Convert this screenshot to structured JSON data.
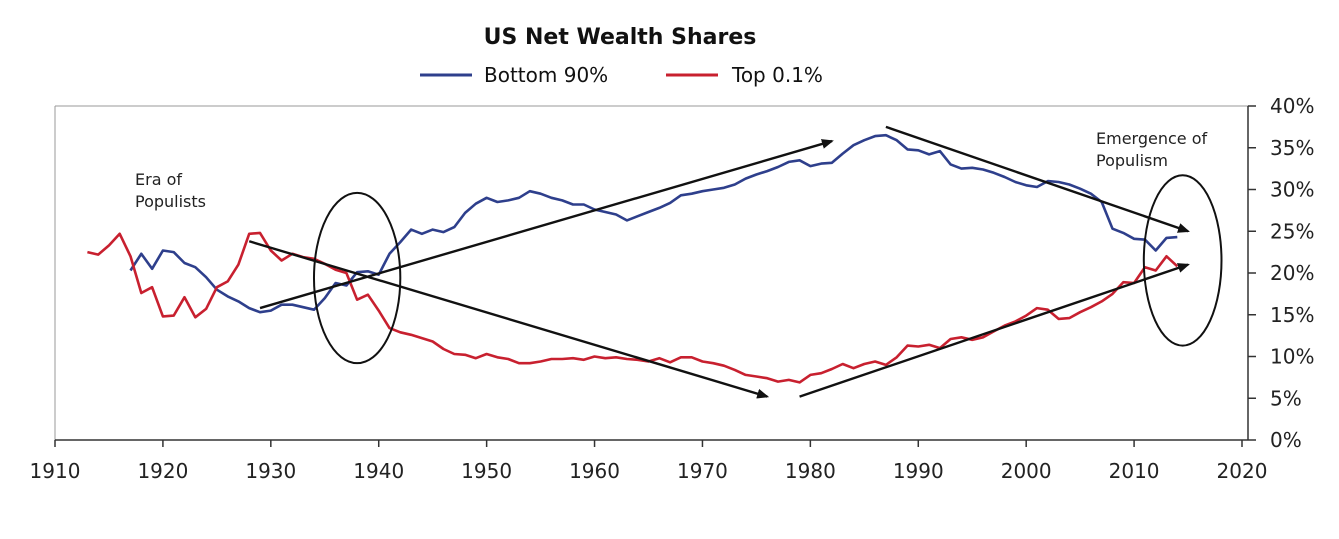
{
  "chart_data": {
    "type": "line",
    "title": "US Net Wealth Shares",
    "xlabel": "",
    "ylabel": "",
    "xlim": [
      1910,
      2020
    ],
    "ylim": [
      0,
      40
    ],
    "x_ticks": [
      "1910",
      "1920",
      "1930",
      "1940",
      "1950",
      "1960",
      "1970",
      "1980",
      "1990",
      "2000",
      "2010",
      "2020"
    ],
    "y_ticks": [
      "0%",
      "5%",
      "10%",
      "15%",
      "20%",
      "25%",
      "30%",
      "35%",
      "40%"
    ],
    "y_axis_side": "right",
    "grid": false,
    "legend_position": "top-center",
    "series": [
      {
        "name": "Bottom 90%",
        "color": "#2e3f8c",
        "points": [
          [
            1917,
            20.3
          ],
          [
            1918,
            22.3
          ],
          [
            1919,
            20.5
          ],
          [
            1920,
            22.7
          ],
          [
            1921,
            22.5
          ],
          [
            1922,
            21.2
          ],
          [
            1923,
            20.7
          ],
          [
            1924,
            19.5
          ],
          [
            1925,
            18.0
          ],
          [
            1926,
            17.2
          ],
          [
            1927,
            16.6
          ],
          [
            1928,
            15.8
          ],
          [
            1929,
            15.3
          ],
          [
            1930,
            15.5
          ],
          [
            1931,
            16.2
          ],
          [
            1932,
            16.2
          ],
          [
            1933,
            15.9
          ],
          [
            1934,
            15.6
          ],
          [
            1935,
            17.0
          ],
          [
            1936,
            18.8
          ],
          [
            1937,
            18.5
          ],
          [
            1938,
            20.1
          ],
          [
            1939,
            20.2
          ],
          [
            1940,
            19.8
          ],
          [
            1941,
            22.3
          ],
          [
            1942,
            23.7
          ],
          [
            1943,
            25.2
          ],
          [
            1944,
            24.7
          ],
          [
            1945,
            25.2
          ],
          [
            1946,
            24.9
          ],
          [
            1947,
            25.5
          ],
          [
            1948,
            27.2
          ],
          [
            1949,
            28.3
          ],
          [
            1950,
            29.0
          ],
          [
            1951,
            28.5
          ],
          [
            1952,
            28.7
          ],
          [
            1953,
            29.0
          ],
          [
            1954,
            29.8
          ],
          [
            1955,
            29.5
          ],
          [
            1956,
            29.0
          ],
          [
            1957,
            28.7
          ],
          [
            1958,
            28.2
          ],
          [
            1959,
            28.2
          ],
          [
            1960,
            27.6
          ],
          [
            1961,
            27.3
          ],
          [
            1962,
            27.0
          ],
          [
            1963,
            26.3
          ],
          [
            1964,
            26.8
          ],
          [
            1965,
            27.3
          ],
          [
            1966,
            27.8
          ],
          [
            1967,
            28.4
          ],
          [
            1968,
            29.3
          ],
          [
            1969,
            29.5
          ],
          [
            1970,
            29.8
          ],
          [
            1971,
            30.0
          ],
          [
            1972,
            30.2
          ],
          [
            1973,
            30.6
          ],
          [
            1974,
            31.3
          ],
          [
            1975,
            31.8
          ],
          [
            1976,
            32.2
          ],
          [
            1977,
            32.7
          ],
          [
            1978,
            33.3
          ],
          [
            1979,
            33.5
          ],
          [
            1980,
            32.8
          ],
          [
            1981,
            33.1
          ],
          [
            1982,
            33.2
          ],
          [
            1983,
            34.3
          ],
          [
            1984,
            35.3
          ],
          [
            1985,
            35.9
          ],
          [
            1986,
            36.4
          ],
          [
            1987,
            36.5
          ],
          [
            1988,
            35.9
          ],
          [
            1989,
            34.8
          ],
          [
            1990,
            34.7
          ],
          [
            1991,
            34.2
          ],
          [
            1992,
            34.6
          ],
          [
            1993,
            33.0
          ],
          [
            1994,
            32.5
          ],
          [
            1995,
            32.6
          ],
          [
            1996,
            32.4
          ],
          [
            1997,
            32.0
          ],
          [
            1998,
            31.5
          ],
          [
            1999,
            30.9
          ],
          [
            2000,
            30.5
          ],
          [
            2001,
            30.3
          ],
          [
            2002,
            31.0
          ],
          [
            2003,
            30.9
          ],
          [
            2004,
            30.6
          ],
          [
            2005,
            30.1
          ],
          [
            2006,
            29.5
          ],
          [
            2007,
            28.5
          ],
          [
            2008,
            25.3
          ],
          [
            2009,
            24.8
          ],
          [
            2010,
            24.1
          ],
          [
            2011,
            24.0
          ],
          [
            2012,
            22.7
          ],
          [
            2013,
            24.2
          ],
          [
            2014,
            24.3
          ]
        ]
      },
      {
        "name": "Top 0.1%",
        "color": "#c8202f",
        "points": [
          [
            1913,
            22.5
          ],
          [
            1914,
            22.2
          ],
          [
            1915,
            23.3
          ],
          [
            1916,
            24.7
          ],
          [
            1917,
            22.0
          ],
          [
            1918,
            17.6
          ],
          [
            1919,
            18.3
          ],
          [
            1920,
            14.8
          ],
          [
            1921,
            14.9
          ],
          [
            1922,
            17.1
          ],
          [
            1923,
            14.7
          ],
          [
            1924,
            15.7
          ],
          [
            1925,
            18.3
          ],
          [
            1926,
            19.0
          ],
          [
            1927,
            21.0
          ],
          [
            1928,
            24.7
          ],
          [
            1929,
            24.8
          ],
          [
            1930,
            22.7
          ],
          [
            1931,
            21.5
          ],
          [
            1932,
            22.3
          ],
          [
            1933,
            21.9
          ],
          [
            1934,
            21.7
          ],
          [
            1935,
            21.1
          ],
          [
            1936,
            20.4
          ],
          [
            1937,
            20.0
          ],
          [
            1938,
            16.8
          ],
          [
            1939,
            17.4
          ],
          [
            1940,
            15.5
          ],
          [
            1941,
            13.4
          ],
          [
            1942,
            12.9
          ],
          [
            1943,
            12.6
          ],
          [
            1944,
            12.2
          ],
          [
            1945,
            11.8
          ],
          [
            1946,
            10.9
          ],
          [
            1947,
            10.3
          ],
          [
            1948,
            10.2
          ],
          [
            1949,
            9.8
          ],
          [
            1950,
            10.3
          ],
          [
            1951,
            9.9
          ],
          [
            1952,
            9.7
          ],
          [
            1953,
            9.2
          ],
          [
            1954,
            9.2
          ],
          [
            1955,
            9.4
          ],
          [
            1956,
            9.7
          ],
          [
            1957,
            9.7
          ],
          [
            1958,
            9.8
          ],
          [
            1959,
            9.6
          ],
          [
            1960,
            10.0
          ],
          [
            1961,
            9.8
          ],
          [
            1962,
            9.9
          ],
          [
            1963,
            9.7
          ],
          [
            1964,
            9.6
          ],
          [
            1965,
            9.4
          ],
          [
            1966,
            9.8
          ],
          [
            1967,
            9.3
          ],
          [
            1968,
            9.9
          ],
          [
            1969,
            9.9
          ],
          [
            1970,
            9.4
          ],
          [
            1971,
            9.2
          ],
          [
            1972,
            8.9
          ],
          [
            1973,
            8.4
          ],
          [
            1974,
            7.8
          ],
          [
            1975,
            7.6
          ],
          [
            1976,
            7.4
          ],
          [
            1977,
            7.0
          ],
          [
            1978,
            7.2
          ],
          [
            1979,
            6.9
          ],
          [
            1980,
            7.8
          ],
          [
            1981,
            8.0
          ],
          [
            1982,
            8.5
          ],
          [
            1983,
            9.1
          ],
          [
            1984,
            8.6
          ],
          [
            1985,
            9.1
          ],
          [
            1986,
            9.4
          ],
          [
            1987,
            9.0
          ],
          [
            1988,
            9.9
          ],
          [
            1989,
            11.3
          ],
          [
            1990,
            11.2
          ],
          [
            1991,
            11.4
          ],
          [
            1992,
            11.0
          ],
          [
            1993,
            12.1
          ],
          [
            1994,
            12.3
          ],
          [
            1995,
            12.0
          ],
          [
            1996,
            12.3
          ],
          [
            1997,
            13.0
          ],
          [
            1998,
            13.7
          ],
          [
            1999,
            14.2
          ],
          [
            2000,
            14.9
          ],
          [
            2001,
            15.8
          ],
          [
            2002,
            15.6
          ],
          [
            2003,
            14.5
          ],
          [
            2004,
            14.6
          ],
          [
            2005,
            15.3
          ],
          [
            2006,
            15.9
          ],
          [
            2007,
            16.6
          ],
          [
            2008,
            17.5
          ],
          [
            2009,
            18.9
          ],
          [
            2010,
            18.8
          ],
          [
            2011,
            20.7
          ],
          [
            2012,
            20.3
          ],
          [
            2013,
            22.0
          ],
          [
            2014,
            20.8
          ]
        ]
      }
    ],
    "annotations": [
      {
        "text_lines": [
          "Era of",
          "Populists"
        ]
      },
      {
        "text_lines": [
          "Emergence of",
          "Populism"
        ]
      }
    ],
    "arrows": [
      {
        "from": [
          1929,
          15.8
        ],
        "to": [
          1982,
          35.8
        ]
      },
      {
        "from": [
          1928,
          23.8
        ],
        "to": [
          1976,
          5.2
        ]
      },
      {
        "from": [
          1979,
          5.2
        ],
        "to": [
          2015,
          21.0
        ]
      },
      {
        "from": [
          1987,
          37.5
        ],
        "to": [
          2015,
          25.0
        ]
      }
    ],
    "ellipses": [
      {
        "center": [
          1938,
          19.4
        ],
        "radius_x_years": 4,
        "radius_y_pct": 10.2
      },
      {
        "center": [
          2014.5,
          21.5
        ],
        "radius_x_years": 3.6,
        "radius_y_pct": 10.2
      }
    ]
  }
}
